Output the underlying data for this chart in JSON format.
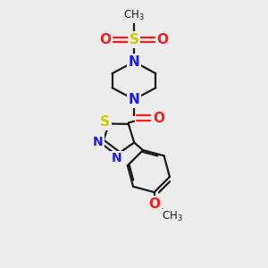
{
  "bg_color": "#ececec",
  "bond_color": "#1a1a1a",
  "N_color": "#1a1aff",
  "S_color": "#cccc00",
  "O_color": "#ff1a1a",
  "bond_width": 1.6,
  "figsize": [
    3.0,
    3.0
  ],
  "dpi": 100,
  "xlim": [
    0,
    10
  ],
  "ylim": [
    0,
    10
  ]
}
